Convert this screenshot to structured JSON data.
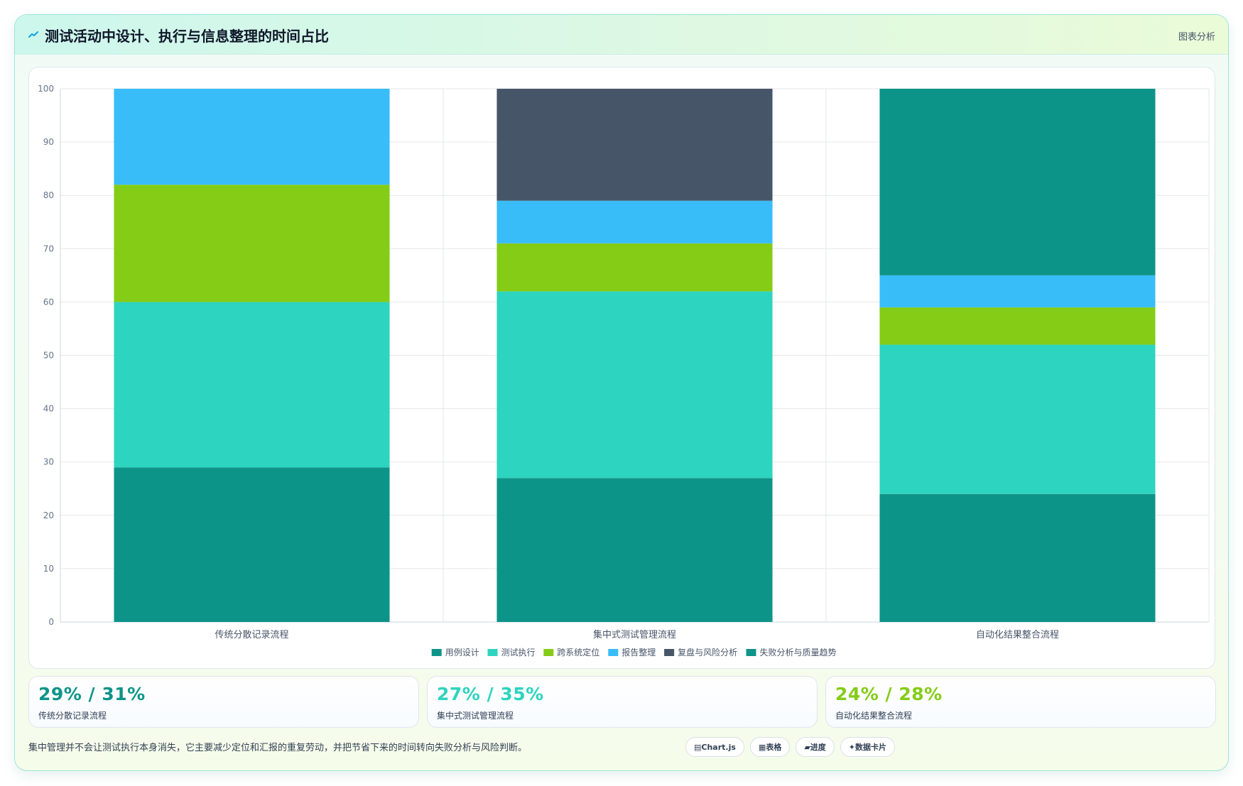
{
  "header": {
    "title": "测试活动中设计、执行与信息整理的时间占比",
    "tag": "图表分析",
    "icon": "line-chart-icon"
  },
  "chart_data": {
    "type": "bar",
    "stacked": true,
    "title": "",
    "xlabel": "",
    "ylabel": "",
    "ylim": [
      0,
      100
    ],
    "yticks": [
      0,
      10,
      20,
      30,
      40,
      50,
      60,
      70,
      80,
      90,
      100
    ],
    "grid": true,
    "legend_position": "bottom",
    "categories": [
      "传统分散记录流程",
      "集中式测试管理流程",
      "自动化结果整合流程"
    ],
    "series": [
      {
        "name": "用例设计",
        "color": "#0d9488",
        "values": [
          29,
          27,
          24
        ]
      },
      {
        "name": "测试执行",
        "color": "#2dd4bf",
        "values": [
          31,
          35,
          28
        ]
      },
      {
        "name": "跨系统定位",
        "color": "#84cc16",
        "values": [
          22,
          9,
          7
        ]
      },
      {
        "name": "报告整理",
        "color": "#38bdf8",
        "values": [
          18,
          8,
          6
        ]
      },
      {
        "name": "复盘与风险分析",
        "color": "#475569",
        "values": [
          0,
          21,
          0
        ]
      },
      {
        "name": "失败分析与质量趋势",
        "color": "#0d9488",
        "values": [
          0,
          0,
          35
        ]
      }
    ]
  },
  "stats": [
    {
      "value": "29% / 31%",
      "label": "传统分散记录流程",
      "color": "#0d9488"
    },
    {
      "value": "27% / 35%",
      "label": "集中式测试管理流程",
      "color": "#2dd4bf"
    },
    {
      "value": "24% / 28%",
      "label": "自动化结果整合流程",
      "color": "#84cc16"
    }
  ],
  "footer": {
    "note": "集中管理并不会让测试执行本身消失，它主要减少定位和汇报的重复劳动，并把节省下来的时间转向失败分析与风险判断。",
    "chips": [
      {
        "icon": "chart-icon",
        "glyph": "▤",
        "label": "Chart.js"
      },
      {
        "icon": "table-icon",
        "glyph": "▦",
        "label": "表格"
      },
      {
        "icon": "progress-icon",
        "glyph": "▰",
        "label": "进度"
      },
      {
        "icon": "sparkle-icon",
        "glyph": "✦",
        "label": "数据卡片"
      }
    ]
  }
}
